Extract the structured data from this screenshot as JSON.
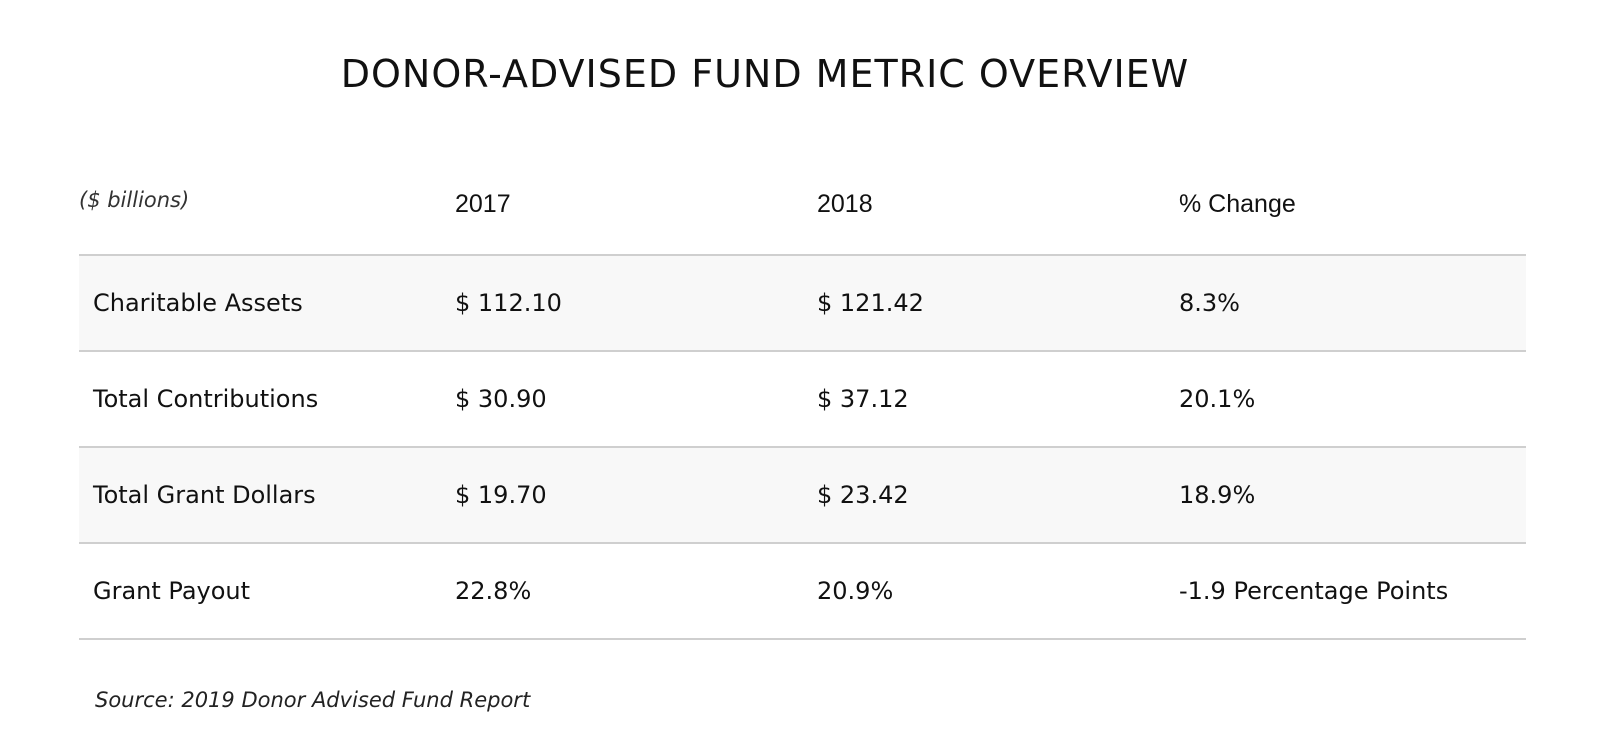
{
  "chart_data": {
    "type": "table",
    "title": "DONOR-ADVISED FUND METRIC OVERVIEW",
    "unit_label": "($ billions)",
    "columns": [
      "2017",
      "2018",
      "% Change"
    ],
    "rows": [
      {
        "label": "Charitable Assets",
        "cells": [
          "$ 112.10",
          "$ 121.42",
          "8.3%"
        ]
      },
      {
        "label": "Total Contributions",
        "cells": [
          "$ 30.90",
          "$ 37.12",
          "20.1%"
        ]
      },
      {
        "label": "Total Grant Dollars",
        "cells": [
          "$ 19.70",
          "$ 23.42",
          "18.9%"
        ]
      },
      {
        "label": "Grant Payout",
        "cells": [
          "22.8%",
          "20.9%",
          "-1.9 Percentage Points"
        ]
      }
    ],
    "source": "Source: 2019 Donor Advised Fund Report"
  }
}
